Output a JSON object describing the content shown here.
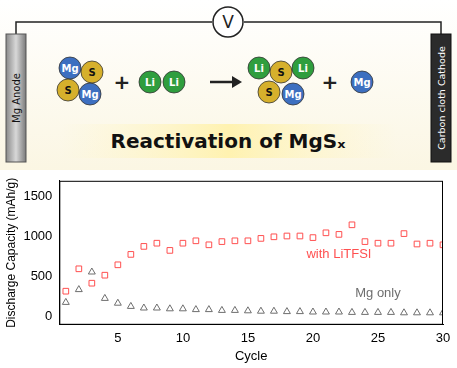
{
  "diagram": {
    "title": "Reactivation of MgSₓ",
    "meter": "V",
    "anode": "Mg Anode",
    "cathode": "Carbon cloth Cathode",
    "reaction": {
      "reactant_1": [
        "Mg",
        "S",
        "S",
        "Mg"
      ],
      "operator_1": "+",
      "reactant_2": [
        "Li",
        "Li"
      ],
      "product_1": [
        "Li",
        "S",
        "Li",
        "S",
        "Mg"
      ],
      "operator_2": "+",
      "product_2": [
        "Mg"
      ]
    }
  },
  "chart_data": {
    "type": "scatter",
    "x_label": "Cycle",
    "y_label": "Discharge Capacity (mAh/g)",
    "xlim": [
      0.5,
      30
    ],
    "xticks": [
      5,
      10,
      15,
      20,
      25,
      30
    ],
    "ylim": [
      -100,
      1700
    ],
    "yticks": [
      0,
      500,
      1000,
      1500
    ],
    "grid": false,
    "series": [
      {
        "name": "with LiTFSI",
        "color": "#ff5050",
        "marker": "square",
        "x": [
          1,
          2,
          3,
          4,
          5,
          6,
          7,
          8,
          9,
          10,
          11,
          12,
          13,
          14,
          15,
          16,
          17,
          18,
          19,
          20,
          21,
          22,
          23,
          24,
          25,
          26,
          27,
          28,
          29,
          30
        ],
        "values": [
          320,
          600,
          420,
          520,
          650,
          780,
          880,
          920,
          830,
          920,
          950,
          900,
          940,
          950,
          950,
          980,
          1000,
          1010,
          1010,
          990,
          1050,
          1030,
          1150,
          940,
          920,
          920,
          1040,
          910,
          920,
          900
        ]
      },
      {
        "name": "Mg only",
        "color": "#6e6e6e",
        "marker": "triangle",
        "x": [
          1,
          2,
          3,
          4,
          5,
          6,
          7,
          8,
          9,
          10,
          11,
          12,
          13,
          14,
          15,
          16,
          17,
          18,
          19,
          20,
          21,
          22,
          23,
          24,
          25,
          26,
          27,
          28,
          29,
          30
        ],
        "values": [
          180,
          340,
          560,
          230,
          170,
          130,
          110,
          110,
          100,
          100,
          90,
          90,
          80,
          80,
          75,
          70,
          70,
          65,
          65,
          60,
          60,
          60,
          55,
          55,
          55,
          55,
          50,
          50,
          50,
          50
        ]
      }
    ]
  }
}
